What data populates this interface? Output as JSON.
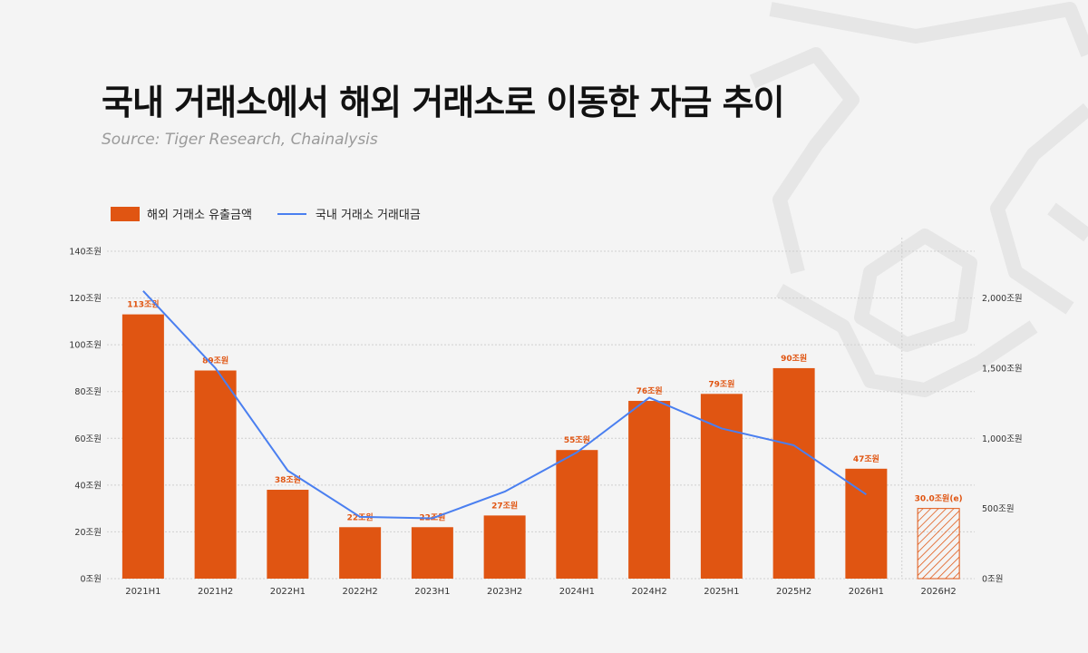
{
  "header": {
    "title": "국내 거래소에서 해외 거래소로 이동한 자금 추이",
    "source": "Source: Tiger Research, Chainalysis"
  },
  "colors": {
    "bar": "#e05512",
    "line": "#4a7ff0",
    "estimate": "#e05512",
    "grid": "#cfcfcf",
    "axis_text": "#333333"
  },
  "chart_data": {
    "type": "bar",
    "categories": [
      "2021H1",
      "2021H2",
      "2022H1",
      "2022H2",
      "2023H1",
      "2023H2",
      "2024H1",
      "2024H2",
      "2025H1",
      "2025H2",
      "2026H1",
      "2026H2"
    ],
    "series": [
      {
        "name": "해외 거래소 유출금액",
        "type": "bar",
        "axis": "left",
        "values": [
          113,
          89,
          38,
          22,
          22,
          27,
          55,
          76,
          79,
          90,
          47,
          30.0
        ],
        "labels": [
          "113조원",
          "89조원",
          "38조원",
          "22조원",
          "22조원",
          "27조원",
          "55조원",
          "76조원",
          "79조원",
          "90조원",
          "47조원",
          "30.0조원(e)"
        ],
        "estimated_index": 11
      },
      {
        "name": "국내 거래소 거래대금",
        "type": "line",
        "axis": "right",
        "values": [
          2050,
          1500,
          770,
          440,
          430,
          620,
          900,
          1290,
          1070,
          950,
          600,
          null
        ]
      }
    ],
    "y_left": {
      "range": [
        0,
        140
      ],
      "ticks": [
        0,
        20,
        40,
        60,
        80,
        100,
        120,
        140
      ],
      "tick_labels": [
        "0조원",
        "20조원",
        "40조원",
        "60조원",
        "80조원",
        "100조원",
        "120조원",
        "140조원"
      ]
    },
    "y_right": {
      "range": [
        0,
        2333.33
      ],
      "ticks": [
        0,
        500,
        1000,
        1500,
        2000
      ],
      "tick_labels": [
        "0조원",
        "500조원",
        "1,000조원",
        "1,500조원",
        "2,000조원"
      ]
    },
    "grid": true,
    "legend_position": "top-left"
  }
}
